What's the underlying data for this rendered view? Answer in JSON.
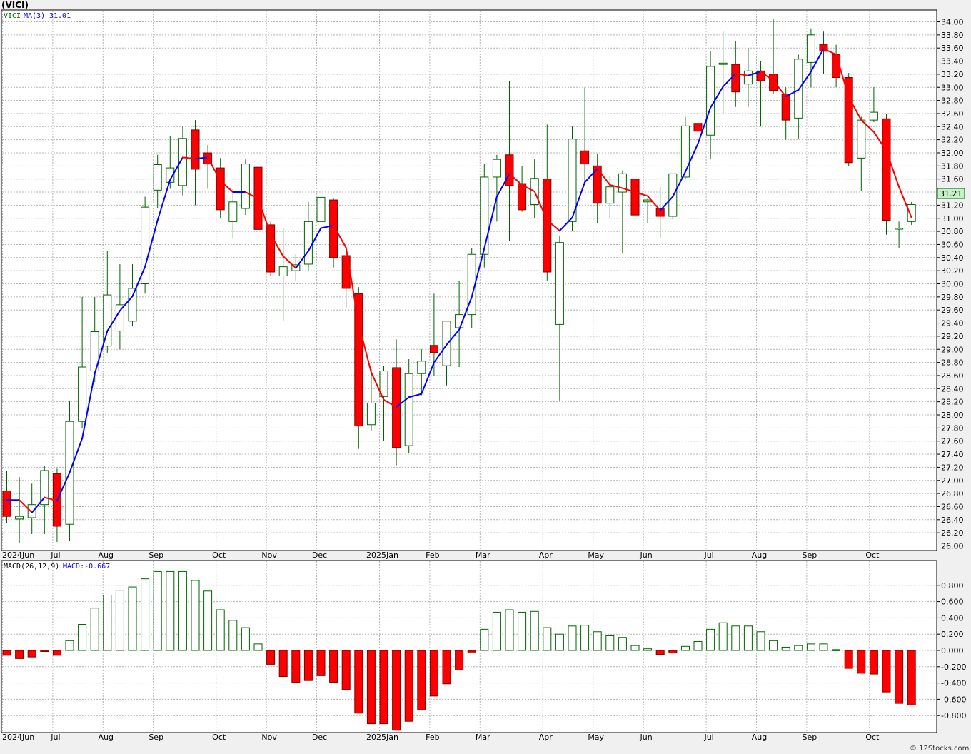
{
  "title": "(VICI)",
  "watermark": "© 12Stocks.com",
  "legend": {
    "symbol": "VICI",
    "ma_label": "MA(3)",
    "ma_value": "31.01",
    "macd_params": "MACD(26,12,9)",
    "macd_value": "MACD:-0.667"
  },
  "last_price_label": "31.21",
  "colors": {
    "up_candle": "#ffffff",
    "down_candle": "#ff0000",
    "candle_outline": "#006400",
    "ma_up": "#0000ff",
    "ma_down": "#ff0000",
    "macd_pos": "#ffffff",
    "macd_neg": "#ff0000",
    "grid": "#b4b4b4",
    "last_price_box": "#c8f0c8"
  },
  "chart_data": [
    {
      "type": "candlestick",
      "title": "(VICI)",
      "ylim": [
        25.9,
        34.2
      ],
      "yticks": [
        "34.00",
        "33.80",
        "33.60",
        "33.40",
        "33.20",
        "33.00",
        "32.80",
        "32.60",
        "32.40",
        "32.20",
        "32.00",
        "31.80",
        "31.60",
        "31.40",
        "31.20",
        "31.00",
        "30.80",
        "30.60",
        "30.40",
        "30.20",
        "30.00",
        "29.80",
        "29.60",
        "29.40",
        "29.20",
        "29.00",
        "28.80",
        "28.60",
        "28.40",
        "28.20",
        "28.00",
        "27.80",
        "27.60",
        "27.40",
        "27.20",
        "27.00",
        "26.80",
        "26.60",
        "26.40",
        "26.20",
        "26.00"
      ],
      "xlabels": [
        "2024Jun",
        "Jul",
        "Aug",
        "Sep",
        "Oct",
        "Nov",
        "Dec",
        "2025Jan",
        "Feb",
        "Mar",
        "Apr",
        "May",
        "Jun",
        "Jul",
        "Aug",
        "Sep",
        "Oct"
      ],
      "candles": [
        {
          "o": 26.84,
          "h": 27.14,
          "l": 26.35,
          "c": 26.45
        },
        {
          "o": 26.41,
          "h": 27.05,
          "l": 26.05,
          "c": 26.45
        },
        {
          "o": 26.43,
          "h": 26.95,
          "l": 26.18,
          "c": 26.63
        },
        {
          "o": 26.63,
          "h": 27.22,
          "l": 26.18,
          "c": 27.15
        },
        {
          "o": 27.1,
          "h": 27.18,
          "l": 26.06,
          "c": 26.3
        },
        {
          "o": 26.33,
          "h": 28.22,
          "l": 26.08,
          "c": 27.9
        },
        {
          "o": 27.9,
          "h": 29.8,
          "l": 27.8,
          "c": 28.73
        },
        {
          "o": 28.67,
          "h": 29.8,
          "l": 28.5,
          "c": 29.27
        },
        {
          "o": 29.05,
          "h": 30.5,
          "l": 28.95,
          "c": 29.83
        },
        {
          "o": 29.28,
          "h": 30.3,
          "l": 29.0,
          "c": 29.68
        },
        {
          "o": 29.43,
          "h": 30.3,
          "l": 29.35,
          "c": 29.93
        },
        {
          "o": 30.0,
          "h": 31.33,
          "l": 29.85,
          "c": 31.17
        },
        {
          "o": 31.43,
          "h": 31.97,
          "l": 31.15,
          "c": 31.82
        },
        {
          "o": 31.55,
          "h": 32.26,
          "l": 31.45,
          "c": 31.77
        },
        {
          "o": 31.5,
          "h": 32.4,
          "l": 31.35,
          "c": 32.22
        },
        {
          "o": 32.35,
          "h": 32.5,
          "l": 31.2,
          "c": 31.75
        },
        {
          "o": 32.0,
          "h": 32.12,
          "l": 31.45,
          "c": 31.83
        },
        {
          "o": 31.77,
          "h": 31.92,
          "l": 31.0,
          "c": 31.13
        },
        {
          "o": 30.95,
          "h": 31.45,
          "l": 30.7,
          "c": 31.25
        },
        {
          "o": 31.15,
          "h": 31.9,
          "l": 31.05,
          "c": 31.83
        },
        {
          "o": 31.78,
          "h": 31.9,
          "l": 30.77,
          "c": 30.83
        },
        {
          "o": 30.9,
          "h": 30.95,
          "l": 30.12,
          "c": 30.18
        },
        {
          "o": 30.12,
          "h": 30.85,
          "l": 29.43,
          "c": 30.26
        },
        {
          "o": 30.2,
          "h": 30.45,
          "l": 30.05,
          "c": 30.29
        },
        {
          "o": 30.3,
          "h": 31.25,
          "l": 30.2,
          "c": 30.95
        },
        {
          "o": 30.95,
          "h": 31.68,
          "l": 30.95,
          "c": 31.32
        },
        {
          "o": 31.28,
          "h": 31.3,
          "l": 30.25,
          "c": 30.4
        },
        {
          "o": 30.43,
          "h": 30.5,
          "l": 29.63,
          "c": 29.93
        },
        {
          "o": 29.85,
          "h": 29.95,
          "l": 27.48,
          "c": 27.83
        },
        {
          "o": 27.85,
          "h": 28.7,
          "l": 27.75,
          "c": 28.18
        },
        {
          "o": 28.28,
          "h": 28.75,
          "l": 27.6,
          "c": 28.67
        },
        {
          "o": 28.72,
          "h": 29.15,
          "l": 27.23,
          "c": 27.5
        },
        {
          "o": 27.53,
          "h": 28.85,
          "l": 27.42,
          "c": 28.63
        },
        {
          "o": 28.63,
          "h": 29.0,
          "l": 28.3,
          "c": 28.82
        },
        {
          "o": 29.06,
          "h": 29.85,
          "l": 28.6,
          "c": 28.95
        },
        {
          "o": 28.75,
          "h": 29.42,
          "l": 28.45,
          "c": 29.43
        },
        {
          "o": 29.33,
          "h": 30.05,
          "l": 28.73,
          "c": 29.53
        },
        {
          "o": 29.53,
          "h": 30.55,
          "l": 29.32,
          "c": 30.45
        },
        {
          "o": 30.45,
          "h": 31.83,
          "l": 30.25,
          "c": 31.63
        },
        {
          "o": 31.63,
          "h": 31.97,
          "l": 30.95,
          "c": 31.9
        },
        {
          "o": 31.97,
          "h": 33.1,
          "l": 30.65,
          "c": 31.5
        },
        {
          "o": 31.53,
          "h": 31.8,
          "l": 31.1,
          "c": 31.13
        },
        {
          "o": 31.21,
          "h": 31.9,
          "l": 31.0,
          "c": 31.61
        },
        {
          "o": 31.6,
          "h": 32.43,
          "l": 30.05,
          "c": 30.18
        },
        {
          "o": 29.38,
          "h": 30.73,
          "l": 28.22,
          "c": 30.63
        },
        {
          "o": 30.95,
          "h": 32.4,
          "l": 30.8,
          "c": 32.21
        },
        {
          "o": 32.03,
          "h": 33.0,
          "l": 31.55,
          "c": 31.83
        },
        {
          "o": 31.8,
          "h": 31.98,
          "l": 30.92,
          "c": 31.23
        },
        {
          "o": 31.23,
          "h": 31.65,
          "l": 31.0,
          "c": 31.48
        },
        {
          "o": 31.4,
          "h": 31.73,
          "l": 30.47,
          "c": 31.68
        },
        {
          "o": 31.6,
          "h": 31.65,
          "l": 30.6,
          "c": 31.05
        },
        {
          "o": 31.25,
          "h": 31.3,
          "l": 30.93,
          "c": 31.28
        },
        {
          "o": 31.15,
          "h": 31.48,
          "l": 30.7,
          "c": 31.03
        },
        {
          "o": 31.03,
          "h": 31.65,
          "l": 30.98,
          "c": 31.68
        },
        {
          "o": 31.63,
          "h": 32.55,
          "l": 31.6,
          "c": 32.41
        },
        {
          "o": 32.45,
          "h": 32.9,
          "l": 32.05,
          "c": 32.33
        },
        {
          "o": 32.27,
          "h": 33.55,
          "l": 31.9,
          "c": 33.32
        },
        {
          "o": 33.35,
          "h": 33.85,
          "l": 32.6,
          "c": 33.37
        },
        {
          "o": 33.35,
          "h": 33.7,
          "l": 32.7,
          "c": 32.93
        },
        {
          "o": 33.05,
          "h": 33.6,
          "l": 32.7,
          "c": 33.25
        },
        {
          "o": 33.25,
          "h": 33.4,
          "l": 32.4,
          "c": 33.1
        },
        {
          "o": 33.2,
          "h": 34.05,
          "l": 32.9,
          "c": 32.95
        },
        {
          "o": 32.9,
          "h": 33.0,
          "l": 32.2,
          "c": 32.5
        },
        {
          "o": 32.53,
          "h": 33.5,
          "l": 32.22,
          "c": 33.43
        },
        {
          "o": 33.38,
          "h": 33.9,
          "l": 33.0,
          "c": 33.8
        },
        {
          "o": 33.65,
          "h": 33.85,
          "l": 33.2,
          "c": 33.55
        },
        {
          "o": 33.5,
          "h": 33.65,
          "l": 33.0,
          "c": 33.15
        },
        {
          "o": 33.15,
          "h": 33.22,
          "l": 31.8,
          "c": 31.85
        },
        {
          "o": 31.92,
          "h": 32.55,
          "l": 31.42,
          "c": 32.5
        },
        {
          "o": 32.5,
          "h": 33.0,
          "l": 32.47,
          "c": 32.62
        },
        {
          "o": 32.52,
          "h": 32.6,
          "l": 30.75,
          "c": 30.97
        },
        {
          "o": 30.84,
          "h": 30.95,
          "l": 30.55,
          "c": 30.85
        },
        {
          "o": 30.95,
          "h": 31.25,
          "l": 30.9,
          "c": 31.21
        }
      ],
      "ma3": [
        26.7,
        26.7,
        26.51,
        26.74,
        26.69,
        27.12,
        27.64,
        28.63,
        29.28,
        29.59,
        29.81,
        30.26,
        30.97,
        31.59,
        31.93,
        31.91,
        31.93,
        31.57,
        31.4,
        31.4,
        31.3,
        30.75,
        30.42,
        30.24,
        30.5,
        30.85,
        30.89,
        30.55,
        29.39,
        28.65,
        28.23,
        28.12,
        28.27,
        28.32,
        28.8,
        29.07,
        29.3,
        29.8,
        30.54,
        31.33,
        31.68,
        31.51,
        31.41,
        30.97,
        30.81,
        31.01,
        31.55,
        31.76,
        31.51,
        31.46,
        31.4,
        31.34,
        31.12,
        31.33,
        31.71,
        32.14,
        32.69,
        33.01,
        33.21,
        33.18,
        33.24,
        33.1,
        32.86,
        32.96,
        33.24,
        33.59,
        33.5,
        32.85,
        32.5,
        32.32,
        32.03,
        31.48,
        31.01
      ],
      "series": [
        {
          "name": "MA(3)",
          "values_ref": "ma3"
        }
      ]
    },
    {
      "type": "bar",
      "title": "MACD(26,12,9)",
      "ylim": [
        -0.98,
        1.0
      ],
      "yticks": [
        "0.800",
        "0.600",
        "0.400",
        "0.200",
        "0.000",
        "-0.200",
        "-0.400",
        "-0.600",
        "-0.800"
      ],
      "xlabels": [
        "2024Jun",
        "Jul",
        "Aug",
        "Sep",
        "Oct",
        "Nov",
        "Dec",
        "2025Jan",
        "Feb",
        "Mar",
        "Apr",
        "May",
        "Jun",
        "Jul",
        "Aug",
        "Sep",
        "Oct"
      ],
      "values": [
        -0.06,
        -0.1,
        -0.08,
        -0.01,
        -0.06,
        0.12,
        0.32,
        0.52,
        0.68,
        0.74,
        0.78,
        0.88,
        0.97,
        0.97,
        0.97,
        0.86,
        0.73,
        0.5,
        0.37,
        0.28,
        0.08,
        -0.17,
        -0.32,
        -0.39,
        -0.37,
        -0.31,
        -0.39,
        -0.48,
        -0.77,
        -0.9,
        -0.9,
        -0.98,
        -0.87,
        -0.73,
        -0.56,
        -0.41,
        -0.24,
        -0.02,
        0.26,
        0.47,
        0.5,
        0.47,
        0.48,
        0.28,
        0.2,
        0.3,
        0.31,
        0.23,
        0.18,
        0.16,
        0.06,
        0.02,
        -0.05,
        -0.03,
        0.05,
        0.11,
        0.26,
        0.34,
        0.3,
        0.3,
        0.23,
        0.12,
        0.04,
        0.06,
        0.08,
        0.08,
        0.01,
        -0.22,
        -0.28,
        -0.29,
        -0.51,
        -0.65,
        -0.67
      ]
    }
  ]
}
